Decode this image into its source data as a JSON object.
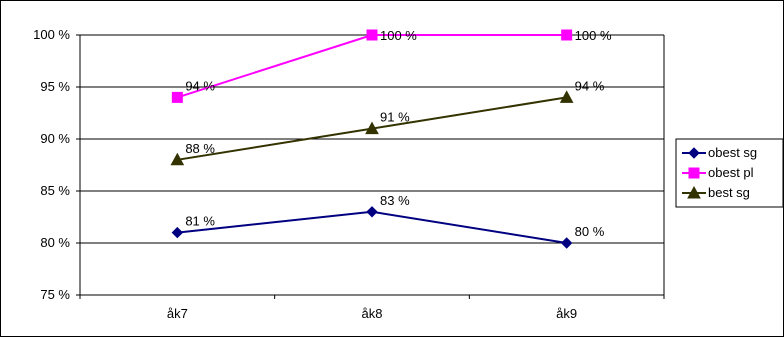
{
  "chart_data": {
    "type": "line",
    "categories": [
      "åk7",
      "åk8",
      "åk9"
    ],
    "ylim": [
      75,
      100
    ],
    "yticks": [
      75,
      80,
      85,
      90,
      95,
      100
    ],
    "ytick_labels": [
      "75 %",
      "80 %",
      "85 %",
      "90 %",
      "95 %",
      "100 %"
    ],
    "grid": true,
    "legend_position": "right",
    "series": [
      {
        "name": "obest sg",
        "values": [
          81,
          83,
          80
        ],
        "labels": [
          "81 %",
          "83 %",
          "80 %"
        ],
        "color": "#000080",
        "marker": "diamond"
      },
      {
        "name": "obest pl",
        "values": [
          94,
          100,
          100
        ],
        "labels": [
          "94 %",
          "100 %",
          "100 %"
        ],
        "color": "#FF00FF",
        "marker": "square"
      },
      {
        "name": "best sg",
        "values": [
          88,
          91,
          94
        ],
        "labels": [
          "88 %",
          "91 %",
          "94 %"
        ],
        "color": "#333300",
        "marker": "triangle"
      }
    ]
  }
}
